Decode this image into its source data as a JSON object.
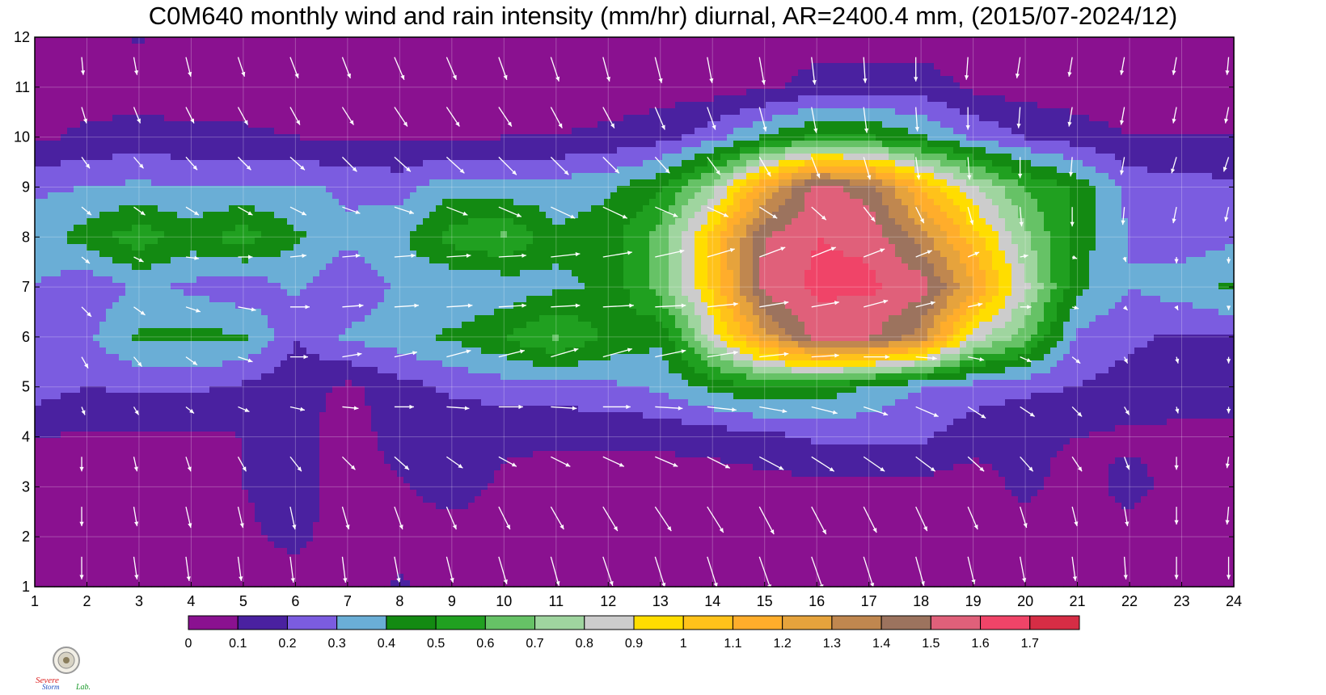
{
  "chart_data": {
    "type": "heatmap",
    "title": "C0M640 monthly wind and rain intensity (mm/hr) diurnal, AR=2400.4 mm, (2015/07-2024/12)",
    "xlabel": "",
    "ylabel": "",
    "xlim": [
      1,
      24
    ],
    "ylim": [
      1,
      12
    ],
    "x_ticks": [
      "1",
      "2",
      "3",
      "4",
      "5",
      "6",
      "7",
      "8",
      "9",
      "10",
      "11",
      "12",
      "13",
      "14",
      "15",
      "16",
      "17",
      "18",
      "19",
      "20",
      "21",
      "22",
      "23",
      "24"
    ],
    "y_ticks": [
      "1",
      "2",
      "3",
      "4",
      "5",
      "6",
      "7",
      "8",
      "9",
      "10",
      "11",
      "12"
    ],
    "colorbar": {
      "levels": [
        "0",
        "0.1",
        "0.2",
        "0.3",
        "0.4",
        "0.5",
        "0.6",
        "0.7",
        "0.8",
        "0.9",
        "1",
        "1.1",
        "1.2",
        "1.3",
        "1.4",
        "1.5",
        "1.6",
        "1.7"
      ],
      "colors": [
        "#8a1190",
        "#4a21a0",
        "#7b5ce0",
        "#6aaed6",
        "#138a12",
        "#20a020",
        "#66c266",
        "#9fd59f",
        "#cccccc",
        "#ffdd00",
        "#ffc21a",
        "#ffad2b",
        "#e6a33c",
        "#c0874f",
        "#9c735e",
        "#e0607a",
        "#f04468",
        "#d62d45"
      ]
    },
    "intensity": {
      "rows_y": [
        1,
        2,
        3,
        4,
        5,
        6,
        7,
        8,
        9,
        10,
        11,
        12
      ],
      "cols_x": [
        1,
        2,
        3,
        4,
        5,
        6,
        7,
        8,
        9,
        10,
        11,
        12,
        13,
        14,
        15,
        16,
        17,
        18,
        19,
        20,
        21,
        22,
        23,
        24
      ],
      "values": [
        [
          0.05,
          0.05,
          0.05,
          0.05,
          0.05,
          0.05,
          0.05,
          0.12,
          0.05,
          0.05,
          0.05,
          0.05,
          0.05,
          0.05,
          0.05,
          0.05,
          0.05,
          0.05,
          0.05,
          0.05,
          0.05,
          0.05,
          0.05,
          0.05
        ],
        [
          0.05,
          0.05,
          0.05,
          0.05,
          0.08,
          0.13,
          0.05,
          0.05,
          0.05,
          0.05,
          0.05,
          0.05,
          0.05,
          0.05,
          0.05,
          0.05,
          0.05,
          0.05,
          0.05,
          0.05,
          0.05,
          0.05,
          0.05,
          0.05
        ],
        [
          0.05,
          0.05,
          0.05,
          0.06,
          0.1,
          0.14,
          0.05,
          0.09,
          0.15,
          0.08,
          0.05,
          0.05,
          0.05,
          0.05,
          0.06,
          0.07,
          0.07,
          0.07,
          0.05,
          0.13,
          0.05,
          0.14,
          0.05,
          0.05
        ],
        [
          0.1,
          0.09,
          0.08,
          0.08,
          0.1,
          0.14,
          0.05,
          0.14,
          0.12,
          0.12,
          0.12,
          0.12,
          0.12,
          0.14,
          0.17,
          0.22,
          0.22,
          0.22,
          0.14,
          0.12,
          0.1,
          0.08,
          0.08,
          0.09
        ],
        [
          0.25,
          0.2,
          0.22,
          0.22,
          0.18,
          0.14,
          0.08,
          0.16,
          0.22,
          0.25,
          0.25,
          0.28,
          0.32,
          0.42,
          0.5,
          0.48,
          0.38,
          0.3,
          0.25,
          0.22,
          0.2,
          0.16,
          0.14,
          0.12
        ],
        [
          0.3,
          0.28,
          0.42,
          0.42,
          0.42,
          0.2,
          0.32,
          0.36,
          0.42,
          0.5,
          0.62,
          0.48,
          0.42,
          0.85,
          1.25,
          1.55,
          1.52,
          1.35,
          0.85,
          0.65,
          0.28,
          0.22,
          0.18,
          0.2
        ],
        [
          0.3,
          0.22,
          0.32,
          0.28,
          0.22,
          0.32,
          0.22,
          0.32,
          0.3,
          0.32,
          0.38,
          0.42,
          0.65,
          1.02,
          1.55,
          1.62,
          1.62,
          1.55,
          1.22,
          0.82,
          0.42,
          0.3,
          0.36,
          0.42
        ],
        [
          0.35,
          0.45,
          0.56,
          0.45,
          0.56,
          0.42,
          0.32,
          0.38,
          0.55,
          0.62,
          0.42,
          0.45,
          0.65,
          1.05,
          1.5,
          1.6,
          1.58,
          1.35,
          1.05,
          0.72,
          0.45,
          0.3,
          0.24,
          0.28
        ],
        [
          0.28,
          0.3,
          0.32,
          0.3,
          0.3,
          0.32,
          0.28,
          0.26,
          0.36,
          0.32,
          0.34,
          0.38,
          0.48,
          0.75,
          1.2,
          1.55,
          1.45,
          1.1,
          0.82,
          0.6,
          0.48,
          0.26,
          0.24,
          0.22
        ],
        [
          0.08,
          0.12,
          0.14,
          0.12,
          0.12,
          0.1,
          0.08,
          0.08,
          0.08,
          0.1,
          0.1,
          0.12,
          0.16,
          0.26,
          0.42,
          0.52,
          0.5,
          0.42,
          0.28,
          0.2,
          0.14,
          0.1,
          0.1,
          0.1
        ],
        [
          0.05,
          0.05,
          0.05,
          0.05,
          0.05,
          0.05,
          0.05,
          0.05,
          0.05,
          0.05,
          0.05,
          0.05,
          0.05,
          0.05,
          0.08,
          0.14,
          0.15,
          0.15,
          0.08,
          0.05,
          0.05,
          0.05,
          0.05,
          0.05
        ],
        [
          0.05,
          0.05,
          0.11,
          0.05,
          0.05,
          0.05,
          0.05,
          0.05,
          0.05,
          0.05,
          0.05,
          0.05,
          0.05,
          0.05,
          0.05,
          0.05,
          0.05,
          0.05,
          0.05,
          0.05,
          0.05,
          0.05,
          0.05,
          0.05
        ]
      ]
    },
    "wind_vectors": {
      "rows_y": [
        1.6,
        2.6,
        3.6,
        4.6,
        5.6,
        6.6,
        7.6,
        8.6,
        9.6,
        10.6,
        11.6
      ],
      "cols_x": [
        1.9,
        2.9,
        3.9,
        4.9,
        5.9,
        6.9,
        7.9,
        8.9,
        9.9,
        10.9,
        11.9,
        12.9,
        13.9,
        14.9,
        15.9,
        16.9,
        17.9,
        18.9,
        19.9,
        20.9,
        21.9,
        22.9,
        23.9
      ],
      "u": [
        [
          0.0,
          0.1,
          0.1,
          0.1,
          0.1,
          0.1,
          0.15,
          0.2,
          0.25,
          0.25,
          0.3,
          0.3,
          0.3,
          0.35,
          0.35,
          0.3,
          0.25,
          0.2,
          0.15,
          0.1,
          0.05,
          0.0,
          0.0
        ],
        [
          0.0,
          0.1,
          0.15,
          0.15,
          0.15,
          0.2,
          0.25,
          0.3,
          0.35,
          0.4,
          0.45,
          0.5,
          0.5,
          0.45,
          0.45,
          0.4,
          0.35,
          0.3,
          0.2,
          0.15,
          0.1,
          0.0,
          -0.05
        ],
        [
          0.0,
          0.1,
          0.15,
          0.25,
          0.35,
          0.4,
          0.45,
          0.5,
          0.55,
          0.6,
          0.65,
          0.7,
          0.7,
          0.75,
          0.7,
          0.65,
          0.6,
          0.5,
          0.4,
          0.3,
          0.15,
          0.0,
          -0.05
        ],
        [
          0.1,
          0.15,
          0.25,
          0.35,
          0.45,
          0.5,
          0.6,
          0.7,
          0.75,
          0.8,
          0.85,
          0.85,
          0.9,
          0.85,
          0.8,
          0.75,
          0.7,
          0.55,
          0.45,
          0.3,
          0.15,
          0.05,
          0.0
        ],
        [
          0.2,
          0.25,
          0.35,
          0.45,
          0.55,
          0.6,
          0.7,
          0.75,
          0.8,
          0.85,
          0.9,
          0.95,
          0.95,
          0.9,
          0.85,
          0.8,
          0.65,
          0.5,
          0.35,
          0.25,
          0.1,
          0.05,
          0.0
        ],
        [
          0.3,
          0.35,
          0.45,
          0.55,
          0.6,
          0.65,
          0.75,
          0.8,
          0.85,
          0.9,
          0.95,
          0.95,
          0.95,
          0.9,
          0.85,
          0.75,
          0.6,
          0.45,
          0.35,
          0.2,
          0.1,
          0.05,
          0.0
        ],
        [
          0.25,
          0.3,
          0.4,
          0.45,
          0.5,
          0.55,
          0.65,
          0.75,
          0.85,
          0.9,
          0.9,
          0.9,
          0.85,
          0.8,
          0.75,
          0.65,
          0.5,
          0.35,
          0.25,
          0.15,
          0.05,
          0.0,
          0.0
        ],
        [
          0.3,
          0.35,
          0.4,
          0.45,
          0.5,
          0.55,
          0.6,
          0.65,
          0.7,
          0.75,
          0.75,
          0.7,
          0.65,
          0.55,
          0.45,
          0.35,
          0.25,
          0.15,
          0.05,
          0.0,
          -0.05,
          -0.1,
          -0.1
        ],
        [
          0.25,
          0.3,
          0.35,
          0.4,
          0.45,
          0.45,
          0.5,
          0.55,
          0.55,
          0.55,
          0.5,
          0.45,
          0.4,
          0.35,
          0.25,
          0.2,
          0.1,
          0.05,
          0.0,
          -0.05,
          -0.1,
          -0.15,
          -0.15
        ],
        [
          0.15,
          0.2,
          0.25,
          0.3,
          0.3,
          0.35,
          0.4,
          0.4,
          0.4,
          0.35,
          0.35,
          0.3,
          0.25,
          0.2,
          0.15,
          0.1,
          0.05,
          0.0,
          -0.05,
          -0.1,
          -0.1,
          -0.1,
          -0.1
        ],
        [
          0.05,
          0.1,
          0.15,
          0.2,
          0.25,
          0.25,
          0.3,
          0.3,
          0.25,
          0.25,
          0.2,
          0.2,
          0.15,
          0.15,
          0.1,
          0.05,
          0.0,
          -0.05,
          -0.1,
          -0.1,
          -0.1,
          -0.1,
          -0.05
        ]
      ],
      "v": [
        [
          -0.7,
          -0.7,
          -0.75,
          -0.75,
          -0.8,
          -0.8,
          -0.8,
          -0.8,
          -0.85,
          -0.9,
          -0.9,
          -0.95,
          -0.95,
          -1.0,
          -1.0,
          -0.95,
          -0.9,
          -0.85,
          -0.8,
          -0.75,
          -0.7,
          -0.7,
          -0.7
        ],
        [
          -0.6,
          -0.6,
          -0.65,
          -0.65,
          -0.7,
          -0.7,
          -0.7,
          -0.7,
          -0.7,
          -0.7,
          -0.75,
          -0.75,
          -0.8,
          -0.85,
          -0.85,
          -0.8,
          -0.75,
          -0.7,
          -0.65,
          -0.6,
          -0.6,
          -0.55,
          -0.55
        ],
        [
          -0.45,
          -0.45,
          -0.45,
          -0.45,
          -0.45,
          -0.4,
          -0.4,
          -0.35,
          -0.3,
          -0.3,
          -0.3,
          -0.3,
          -0.35,
          -0.4,
          -0.45,
          -0.45,
          -0.45,
          -0.45,
          -0.45,
          -0.45,
          -0.4,
          -0.4,
          -0.35
        ],
        [
          -0.25,
          -0.25,
          -0.2,
          -0.15,
          -0.1,
          -0.05,
          0.0,
          -0.05,
          0.0,
          -0.05,
          0.0,
          -0.05,
          -0.1,
          -0.15,
          -0.2,
          -0.25,
          -0.3,
          -0.35,
          -0.3,
          -0.3,
          -0.25,
          -0.2,
          -0.2
        ],
        [
          -0.35,
          -0.3,
          -0.25,
          -0.15,
          0.0,
          0.1,
          0.15,
          0.2,
          0.2,
          0.25,
          0.25,
          0.2,
          0.15,
          0.1,
          0.05,
          0.0,
          -0.05,
          -0.1,
          -0.15,
          -0.2,
          -0.2,
          -0.2,
          -0.2
        ],
        [
          -0.3,
          -0.25,
          -0.15,
          -0.1,
          0.0,
          0.05,
          0.05,
          0.05,
          0.05,
          0.05,
          0.05,
          0.05,
          0.1,
          0.15,
          0.15,
          0.2,
          0.15,
          0.1,
          0.0,
          -0.05,
          -0.1,
          -0.1,
          -0.1
        ],
        [
          -0.2,
          -0.15,
          -0.05,
          0.0,
          0.05,
          0.05,
          0.05,
          0.05,
          0.05,
          0.1,
          0.15,
          0.2,
          0.25,
          0.3,
          0.3,
          0.25,
          0.2,
          0.15,
          0.05,
          -0.05,
          -0.15,
          -0.2,
          -0.2
        ],
        [
          -0.25,
          -0.25,
          -0.25,
          -0.25,
          -0.25,
          -0.2,
          -0.2,
          -0.25,
          -0.3,
          -0.35,
          -0.35,
          -0.3,
          -0.3,
          -0.35,
          -0.4,
          -0.45,
          -0.5,
          -0.55,
          -0.6,
          -0.6,
          -0.55,
          -0.5,
          -0.45
        ],
        [
          -0.35,
          -0.35,
          -0.4,
          -0.4,
          -0.4,
          -0.45,
          -0.45,
          -0.5,
          -0.55,
          -0.55,
          -0.5,
          -0.5,
          -0.55,
          -0.6,
          -0.65,
          -0.7,
          -0.7,
          -0.7,
          -0.65,
          -0.6,
          -0.55,
          -0.5,
          -0.45
        ],
        [
          -0.5,
          -0.5,
          -0.5,
          -0.55,
          -0.55,
          -0.55,
          -0.6,
          -0.6,
          -0.6,
          -0.65,
          -0.65,
          -0.7,
          -0.7,
          -0.75,
          -0.8,
          -0.8,
          -0.75,
          -0.7,
          -0.65,
          -0.6,
          -0.55,
          -0.5,
          -0.5
        ],
        [
          -0.55,
          -0.55,
          -0.6,
          -0.6,
          -0.65,
          -0.65,
          -0.7,
          -0.7,
          -0.7,
          -0.75,
          -0.75,
          -0.8,
          -0.8,
          -0.85,
          -0.85,
          -0.8,
          -0.75,
          -0.7,
          -0.65,
          -0.6,
          -0.55,
          -0.55,
          -0.55
        ]
      ]
    }
  },
  "logo": {
    "text_top": "Severe",
    "text_bottom": "Storm",
    "text_lab": "Lab."
  }
}
